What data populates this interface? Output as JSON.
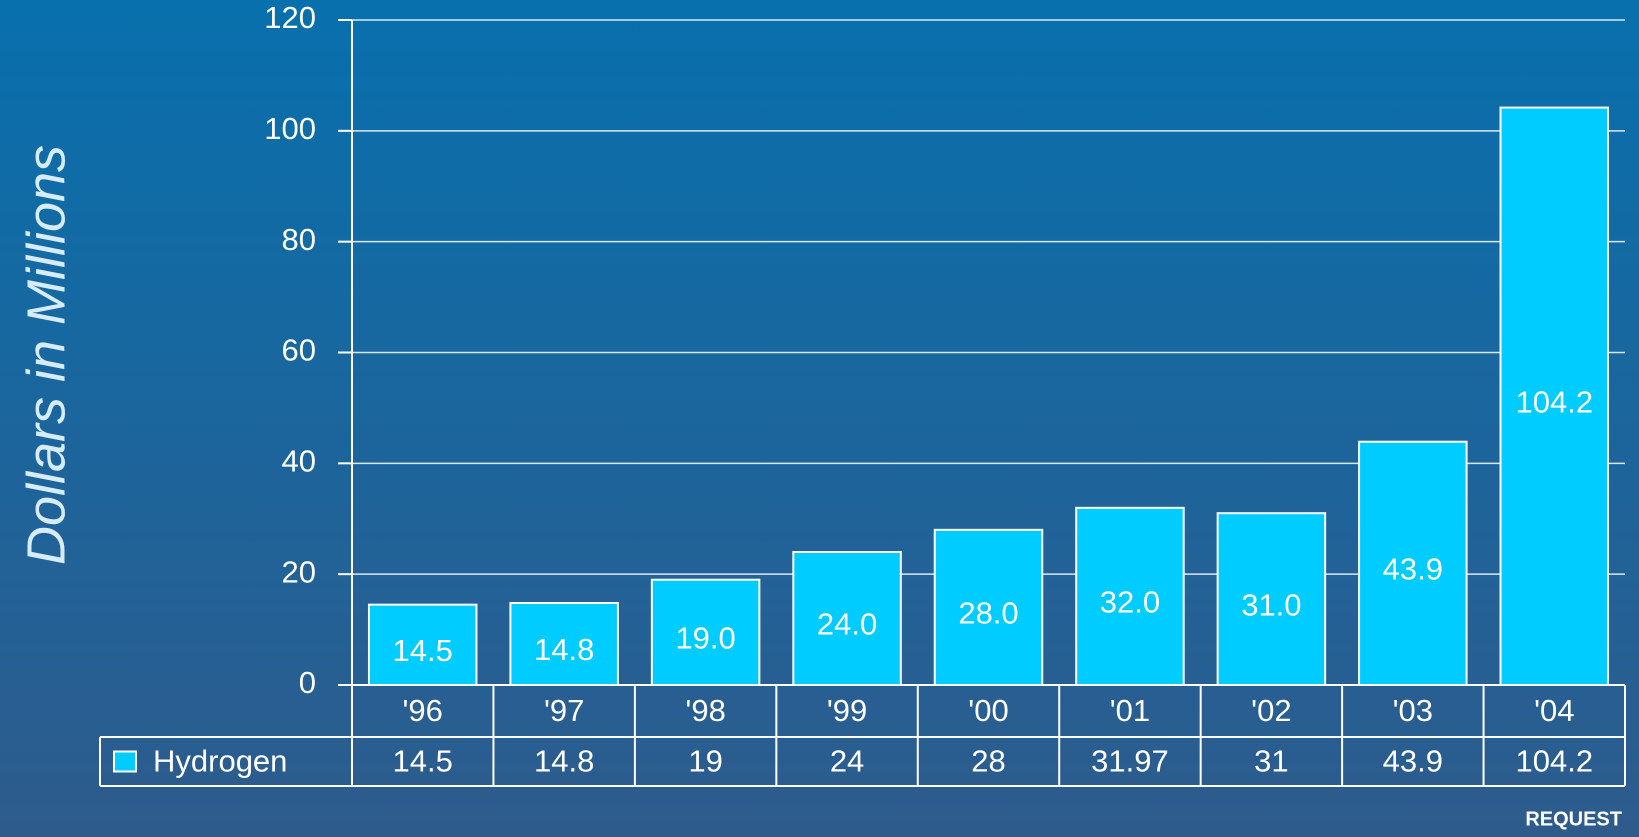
{
  "chart_data": {
    "type": "bar",
    "y_label": "Dollars in Millions",
    "annotation": "REQUEST",
    "categories": [
      "'96",
      "'97",
      "'98",
      "'99",
      "'00",
      "'01",
      "'02",
      "'03",
      "'04"
    ],
    "series": [
      {
        "name": "Hydrogen",
        "color": "#00ccff",
        "values": [
          14.5,
          14.8,
          19,
          24,
          28,
          31.97,
          31,
          43.9,
          104.2
        ],
        "value_labels": [
          "14.5",
          "14.8",
          "19.0",
          "24.0",
          "28.0",
          "32.0",
          "31.0",
          "43.9",
          "104.2"
        ]
      }
    ],
    "ylim": [
      0,
      120
    ],
    "yticks": [
      0,
      20,
      40,
      60,
      80,
      100,
      120
    ],
    "grid": true,
    "legend": "data-table"
  }
}
